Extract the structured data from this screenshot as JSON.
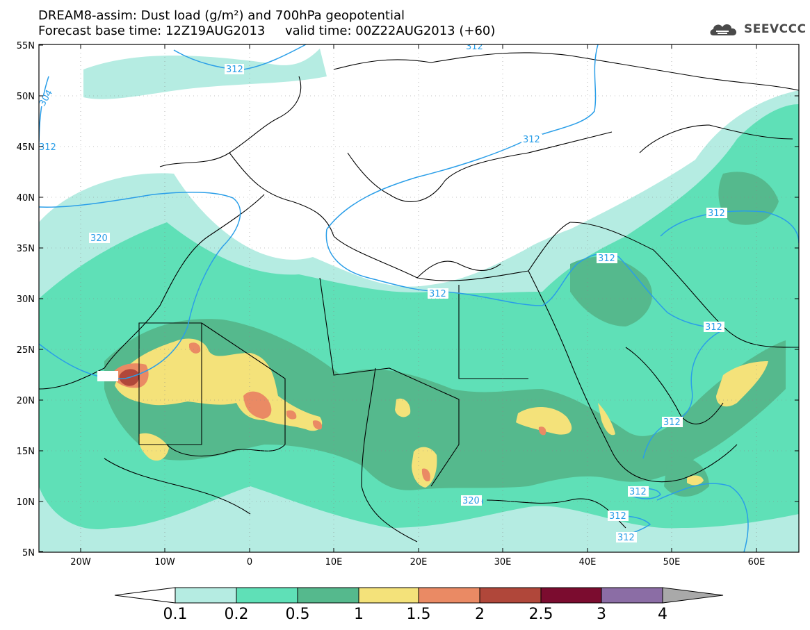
{
  "title": {
    "line1": "DREAM8-assim: Dust load (g/m²) and 700hPa geopotential",
    "line2": "Forecast base time: 12Z19AUG2013     valid time: 00Z22AUG2013 (+60)"
  },
  "logo": {
    "text": "SEEVCCC",
    "icon": "cloud-icon"
  },
  "axes": {
    "lat_labels": [
      "55N",
      "50N",
      "45N",
      "40N",
      "35N",
      "30N",
      "25N",
      "20N",
      "15N",
      "10N",
      "5N"
    ],
    "lon_labels": [
      "20W",
      "10W",
      "0",
      "10E",
      "20E",
      "30E",
      "40E",
      "50E",
      "60E"
    ]
  },
  "contours": {
    "labels": [
      "312",
      "312",
      "304",
      "312",
      "320",
      "312",
      "312",
      "312",
      "312",
      "312",
      "312",
      "312",
      "312",
      "312",
      "320"
    ]
  },
  "colorbar": {
    "labels": [
      "0.1",
      "0.2",
      "0.5",
      "1",
      "1.5",
      "2",
      "2.5",
      "3",
      "4"
    ],
    "colors": [
      "#b5ece2",
      "#5fe0b7",
      "#55b98d",
      "#f4e27a",
      "#ea8a64",
      "#b0473a",
      "#7b0c2f",
      "#8b6da5",
      "#a9a9a9"
    ]
  },
  "colors": {
    "contour_line": "#2a9ee8",
    "border_line": "#000000",
    "dust_0_1": "#b5ece2",
    "dust_0_2": "#5fe0b7",
    "dust_0_5": "#55b98d",
    "dust_1": "#f4e27a",
    "dust_1_5": "#ea8a64",
    "dust_2": "#b0473a"
  }
}
